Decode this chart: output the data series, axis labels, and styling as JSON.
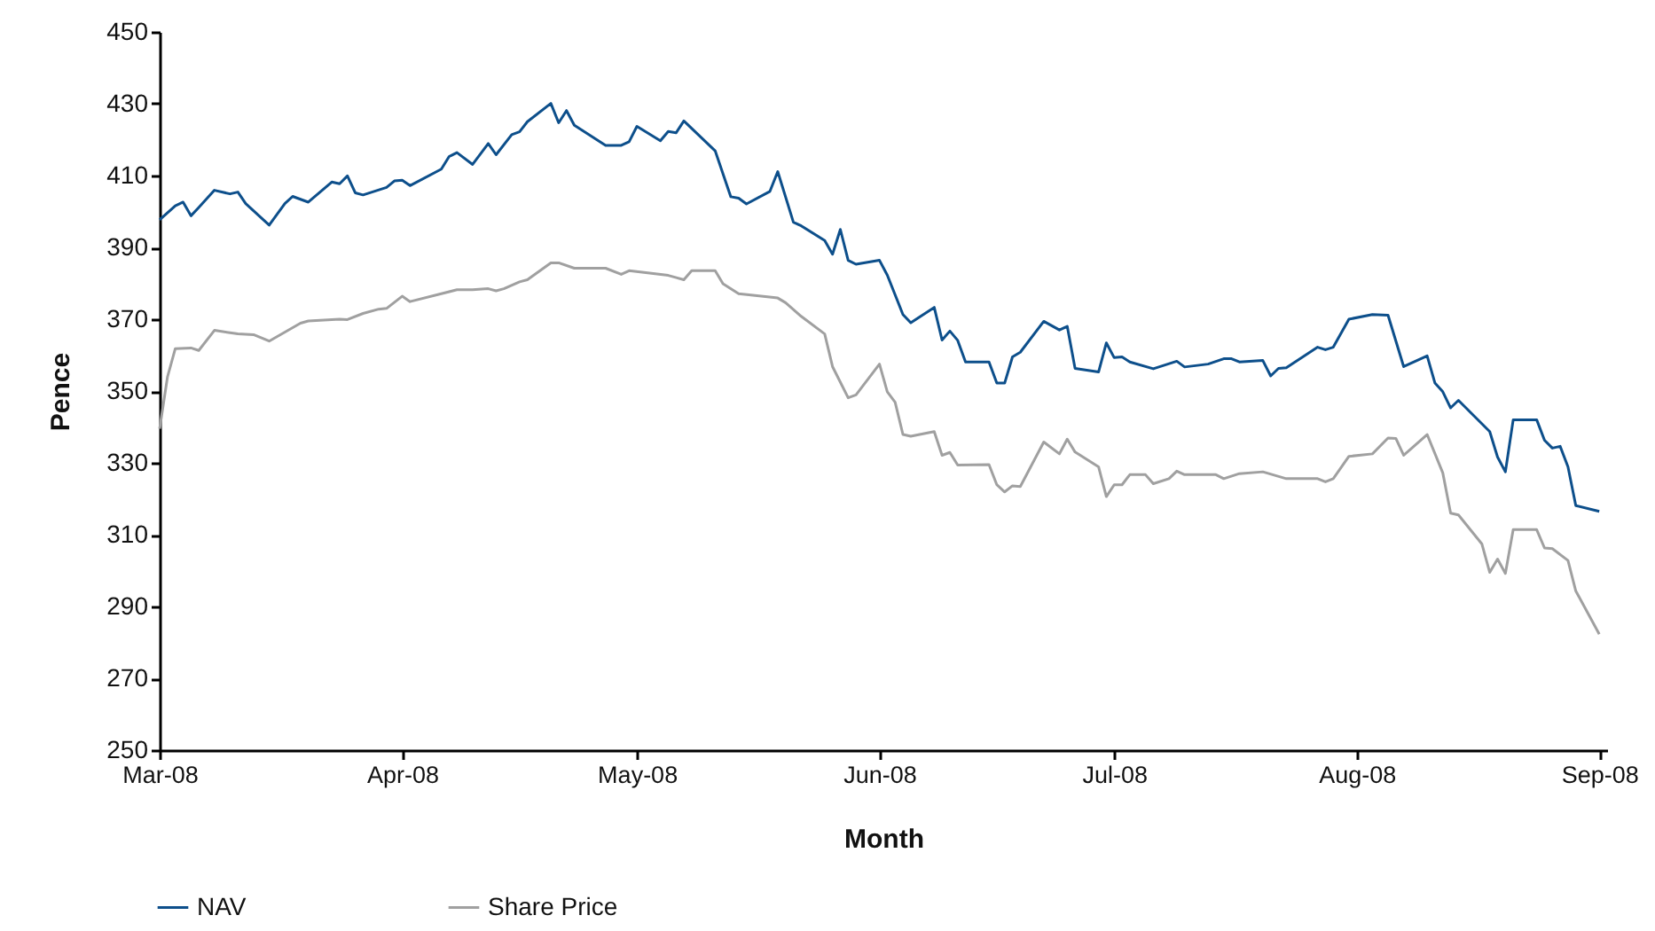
{
  "chart_data": {
    "type": "line",
    "xlabel": "Month",
    "ylabel": "Pence",
    "xlim": [
      "2008-03-01",
      "2008-09-02"
    ],
    "xticks": [
      {
        "value": "2008-03-01",
        "label": "Mar-08"
      },
      {
        "value": "2008-04-01",
        "label": "Apr-08"
      },
      {
        "value": "2008-05-01",
        "label": "May-08"
      },
      {
        "value": "2008-06-01",
        "label": "Jun-08"
      },
      {
        "value": "2008-07-01",
        "label": "Jul-08"
      },
      {
        "value": "2008-08-01",
        "label": "Aug-08"
      },
      {
        "value": "2008-09-01",
        "label": "Sep-08"
      }
    ],
    "ylim": [
      250,
      450
    ],
    "yticks": [
      250,
      270,
      290,
      310,
      330,
      350,
      370,
      390,
      410,
      430,
      450
    ],
    "grid": false,
    "legend": "bottom",
    "marker": "none",
    "line_style": "solid",
    "series": [
      {
        "name": "NAV",
        "color": "#0d4f8b",
        "x": [
          "2008-03-01",
          "2008-03-03",
          "2008-03-04",
          "2008-03-05",
          "2008-03-06",
          "2008-03-08",
          "2008-03-10",
          "2008-03-11",
          "2008-03-12",
          "2008-03-15",
          "2008-03-17",
          "2008-03-18",
          "2008-03-20",
          "2008-03-23",
          "2008-03-24",
          "2008-03-25",
          "2008-03-26",
          "2008-03-27",
          "2008-03-30",
          "2008-03-31",
          "2008-04-01",
          "2008-04-02",
          "2008-04-06",
          "2008-04-07",
          "2008-04-08",
          "2008-04-10",
          "2008-04-12",
          "2008-04-13",
          "2008-04-15",
          "2008-04-16",
          "2008-04-17",
          "2008-04-20",
          "2008-04-21",
          "2008-04-22",
          "2008-04-23",
          "2008-04-27",
          "2008-04-29",
          "2008-04-30",
          "2008-05-01",
          "2008-05-04",
          "2008-05-05",
          "2008-05-06",
          "2008-05-07",
          "2008-05-11",
          "2008-05-13",
          "2008-05-14",
          "2008-05-15",
          "2008-05-18",
          "2008-05-19",
          "2008-05-21",
          "2008-05-22",
          "2008-05-25",
          "2008-05-26",
          "2008-05-27",
          "2008-05-28",
          "2008-05-29",
          "2008-06-01",
          "2008-06-02",
          "2008-06-04",
          "2008-06-05",
          "2008-06-08",
          "2008-06-09",
          "2008-06-10",
          "2008-06-11",
          "2008-06-12",
          "2008-06-15",
          "2008-06-16",
          "2008-06-17",
          "2008-06-18",
          "2008-06-19",
          "2008-06-22",
          "2008-06-24",
          "2008-06-25",
          "2008-06-26",
          "2008-06-29",
          "2008-06-30",
          "2008-07-01",
          "2008-07-02",
          "2008-07-03",
          "2008-07-06",
          "2008-07-09",
          "2008-07-10",
          "2008-07-13",
          "2008-07-15",
          "2008-07-16",
          "2008-07-17",
          "2008-07-20",
          "2008-07-21",
          "2008-07-22",
          "2008-07-23",
          "2008-07-27",
          "2008-07-28",
          "2008-07-29",
          "2008-07-31",
          "2008-08-03",
          "2008-08-05",
          "2008-08-07",
          "2008-08-10",
          "2008-08-11",
          "2008-08-12",
          "2008-08-13",
          "2008-08-14",
          "2008-08-18",
          "2008-08-19",
          "2008-08-20",
          "2008-08-21",
          "2008-08-24",
          "2008-08-25",
          "2008-08-26",
          "2008-08-27",
          "2008-08-28",
          "2008-08-29",
          "2008-09-01"
        ],
        "values": [
          397.7,
          401.6,
          402.6,
          398.8,
          401.1,
          405.9,
          404.9,
          405.4,
          402.2,
          396.2,
          402.2,
          404.2,
          402.6,
          408.2,
          407.7,
          409.9,
          405.2,
          404.6,
          406.7,
          408.5,
          408.7,
          407.2,
          411.8,
          415.3,
          416.4,
          413.1,
          418.9,
          415.8,
          421.4,
          422.2,
          425,
          430.1,
          424.7,
          428.1,
          424,
          418.4,
          418.4,
          419.4,
          423.7,
          419.7,
          422.3,
          421.9,
          425.2,
          416.9,
          404.1,
          403.7,
          402.1,
          405.6,
          411.1,
          397,
          396,
          391.9,
          388.1,
          395,
          386.4,
          385.3,
          386.4,
          382.3,
          371.3,
          369,
          373.3,
          364.2,
          366.7,
          364.1,
          358.1,
          358.1,
          352.2,
          352.2,
          359.5,
          360.8,
          369.4,
          367,
          368,
          356.3,
          355.3,
          363.4,
          359.3,
          359.5,
          358.1,
          356.2,
          358.3,
          356.7,
          357.5,
          359,
          359,
          358.1,
          358.5,
          354.2,
          356.3,
          356.5,
          362.2,
          361.5,
          362.2,
          370,
          371.3,
          371.1,
          356.8,
          359.8,
          352.2,
          349.8,
          345.3,
          347.4,
          338.7,
          331.6,
          327.5,
          342,
          342,
          336.3,
          334.1,
          334.6,
          328.9,
          318.1,
          316.5
        ]
      },
      {
        "name": "Share Price",
        "color": "#a0a0a0",
        "x": [
          "2008-03-01",
          "2008-03-02",
          "2008-03-03",
          "2008-03-05",
          "2008-03-06",
          "2008-03-08",
          "2008-03-11",
          "2008-03-13",
          "2008-03-15",
          "2008-03-19",
          "2008-03-20",
          "2008-03-24",
          "2008-03-25",
          "2008-03-27",
          "2008-03-29",
          "2008-03-30",
          "2008-04-01",
          "2008-04-02",
          "2008-04-06",
          "2008-04-08",
          "2008-04-10",
          "2008-04-12",
          "2008-04-13",
          "2008-04-14",
          "2008-04-16",
          "2008-04-17",
          "2008-04-20",
          "2008-04-21",
          "2008-04-23",
          "2008-04-27",
          "2008-04-29",
          "2008-04-30",
          "2008-05-05",
          "2008-05-07",
          "2008-05-08",
          "2008-05-11",
          "2008-05-12",
          "2008-05-14",
          "2008-05-19",
          "2008-05-20",
          "2008-05-22",
          "2008-05-25",
          "2008-05-26",
          "2008-05-28",
          "2008-05-29",
          "2008-06-01",
          "2008-06-02",
          "2008-06-03",
          "2008-06-04",
          "2008-06-05",
          "2008-06-08",
          "2008-06-09",
          "2008-06-10",
          "2008-06-11",
          "2008-06-15",
          "2008-06-16",
          "2008-06-17",
          "2008-06-18",
          "2008-06-19",
          "2008-06-22",
          "2008-06-24",
          "2008-06-25",
          "2008-06-26",
          "2008-06-29",
          "2008-06-30",
          "2008-07-01",
          "2008-07-02",
          "2008-07-03",
          "2008-07-05",
          "2008-07-06",
          "2008-07-08",
          "2008-07-09",
          "2008-07-10",
          "2008-07-14",
          "2008-07-15",
          "2008-07-17",
          "2008-07-20",
          "2008-07-23",
          "2008-07-27",
          "2008-07-28",
          "2008-07-29",
          "2008-07-31",
          "2008-08-03",
          "2008-08-05",
          "2008-08-06",
          "2008-08-07",
          "2008-08-10",
          "2008-08-12",
          "2008-08-13",
          "2008-08-14",
          "2008-08-17",
          "2008-08-18",
          "2008-08-19",
          "2008-08-20",
          "2008-08-21",
          "2008-08-24",
          "2008-08-25",
          "2008-08-26",
          "2008-08-28",
          "2008-08-29",
          "2008-09-01"
        ],
        "values": [
          339.5,
          353.9,
          361.8,
          362,
          361.3,
          366.9,
          365.9,
          365.7,
          363.9,
          368.9,
          369.5,
          370,
          369.9,
          371.6,
          372.8,
          373,
          376.4,
          374.9,
          377.1,
          378.2,
          378.2,
          378.5,
          377.9,
          378.5,
          380.4,
          381,
          385.7,
          385.7,
          384.2,
          384.2,
          382.5,
          383.5,
          382.2,
          381,
          383.5,
          383.5,
          379.9,
          377.1,
          375.9,
          374.6,
          370.8,
          365.9,
          356.8,
          348.1,
          348.9,
          357.5,
          349.8,
          346.9,
          337.9,
          337.4,
          338.7,
          332.1,
          332.9,
          329.4,
          329.5,
          323.9,
          321.9,
          323.6,
          323.4,
          335.8,
          332.5,
          336.6,
          333,
          328.9,
          320.6,
          323.9,
          323.9,
          326.7,
          326.7,
          324.2,
          325.6,
          327.7,
          326.7,
          326.7,
          325.6,
          327,
          327.5,
          325.6,
          325.6,
          324.7,
          325.6,
          331.8,
          332.5,
          336.9,
          336.8,
          332.1,
          337.9,
          327.2,
          316,
          315.5,
          307.4,
          299.5,
          303.2,
          299.2,
          311.4,
          311.4,
          306.3,
          306.1,
          302.8,
          294.3,
          282.3
        ]
      }
    ]
  }
}
